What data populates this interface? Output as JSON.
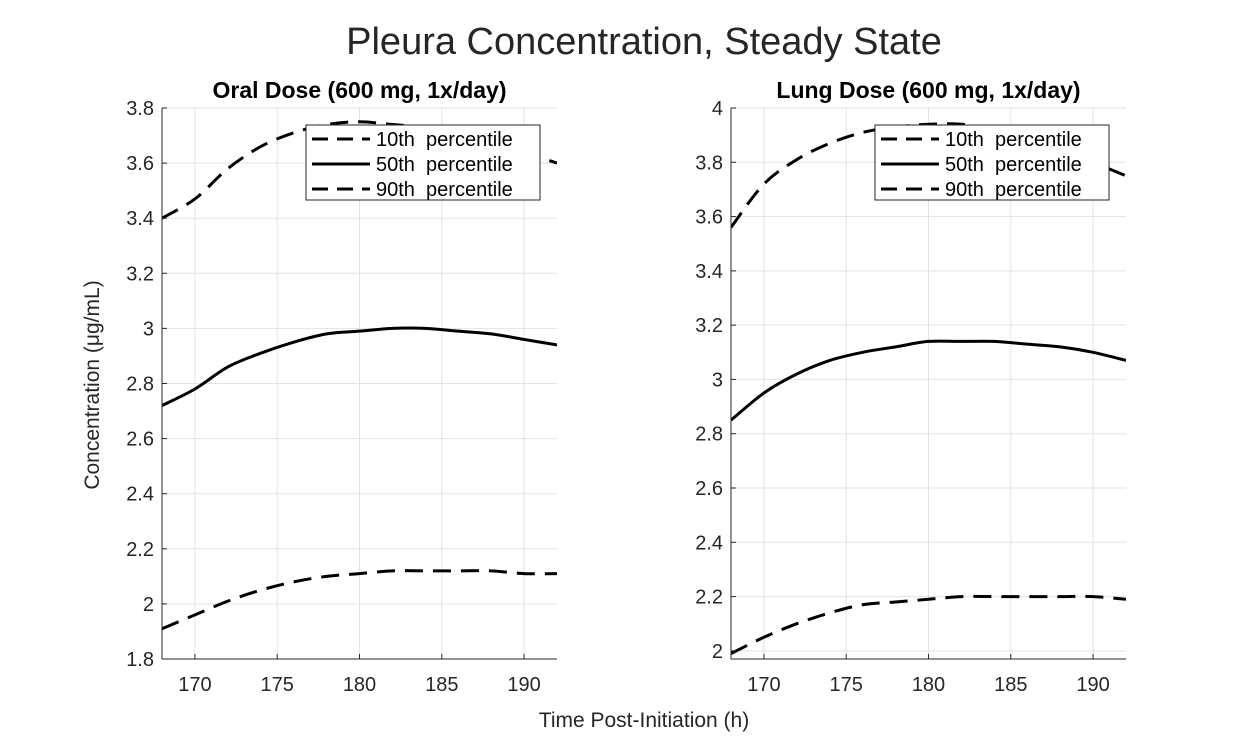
{
  "figure": {
    "suptitle": "Pleura Concentration, Steady State",
    "shared_xlabel": "Time Post-Initiation (h)",
    "shared_ylabel": "Concentration  (μg/mL)"
  },
  "chart_data": [
    {
      "type": "line",
      "title": "Oral Dose (600 mg, 1x/day)",
      "xlabel": "Time Post-Initiation (h)",
      "ylabel": "Concentration  (μg/mL)",
      "xlim": [
        168,
        192
      ],
      "ylim": [
        1.8,
        3.8
      ],
      "xticks": [
        170,
        175,
        180,
        185,
        190
      ],
      "yticks": [
        1.8,
        2,
        2.2,
        2.4,
        2.6,
        2.8,
        3,
        3.2,
        3.4,
        3.6,
        3.8
      ],
      "ytick_labels": [
        "1.8",
        "2",
        "2.2",
        "2.4",
        "2.6",
        "2.8",
        "3",
        "3.2",
        "3.4",
        "3.6",
        "3.8"
      ],
      "grid": true,
      "legend_position": "top-right",
      "x": [
        168,
        170,
        172,
        174,
        176,
        178,
        180,
        182,
        184,
        186,
        188,
        190,
        192
      ],
      "series": [
        {
          "name": "10th  percentile",
          "style": "dashed",
          "values": [
            1.91,
            1.96,
            2.01,
            2.05,
            2.08,
            2.1,
            2.11,
            2.12,
            2.12,
            2.12,
            2.12,
            2.11,
            2.11
          ]
        },
        {
          "name": "50th  percentile",
          "style": "solid",
          "values": [
            2.72,
            2.78,
            2.86,
            2.91,
            2.95,
            2.98,
            2.99,
            3.0,
            3.0,
            2.99,
            2.98,
            2.96,
            2.94
          ]
        },
        {
          "name": "90th  percentile",
          "style": "dashed",
          "values": [
            3.4,
            3.47,
            3.58,
            3.66,
            3.71,
            3.74,
            3.75,
            3.74,
            3.73,
            3.71,
            3.68,
            3.64,
            3.6
          ]
        }
      ]
    },
    {
      "type": "line",
      "title": "Lung Dose (600 mg, 1x/day)",
      "xlabel": "Time Post-Initiation (h)",
      "ylabel": "",
      "xlim": [
        168,
        192
      ],
      "ylim": [
        1.97,
        4.0
      ],
      "xticks": [
        170,
        175,
        180,
        185,
        190
      ],
      "yticks": [
        2,
        2.2,
        2.4,
        2.6,
        2.8,
        3,
        3.2,
        3.4,
        3.6,
        3.8,
        4
      ],
      "ytick_labels": [
        "2",
        "2.2",
        "2.4",
        "2.6",
        "2.8",
        "3",
        "3.2",
        "3.4",
        "3.6",
        "3.8",
        "4"
      ],
      "grid": true,
      "legend_position": "top-right",
      "x": [
        168,
        170,
        172,
        174,
        176,
        178,
        180,
        182,
        184,
        186,
        188,
        190,
        192
      ],
      "series": [
        {
          "name": "10th  percentile",
          "style": "dashed",
          "values": [
            1.99,
            2.05,
            2.1,
            2.14,
            2.17,
            2.18,
            2.19,
            2.2,
            2.2,
            2.2,
            2.2,
            2.2,
            2.19
          ]
        },
        {
          "name": "50th  percentile",
          "style": "solid",
          "values": [
            2.85,
            2.95,
            3.02,
            3.07,
            3.1,
            3.12,
            3.14,
            3.14,
            3.14,
            3.13,
            3.12,
            3.1,
            3.07
          ]
        },
        {
          "name": "90th  percentile",
          "style": "dashed",
          "values": [
            3.56,
            3.72,
            3.81,
            3.87,
            3.91,
            3.93,
            3.94,
            3.94,
            3.92,
            3.89,
            3.85,
            3.8,
            3.75
          ]
        }
      ]
    }
  ]
}
